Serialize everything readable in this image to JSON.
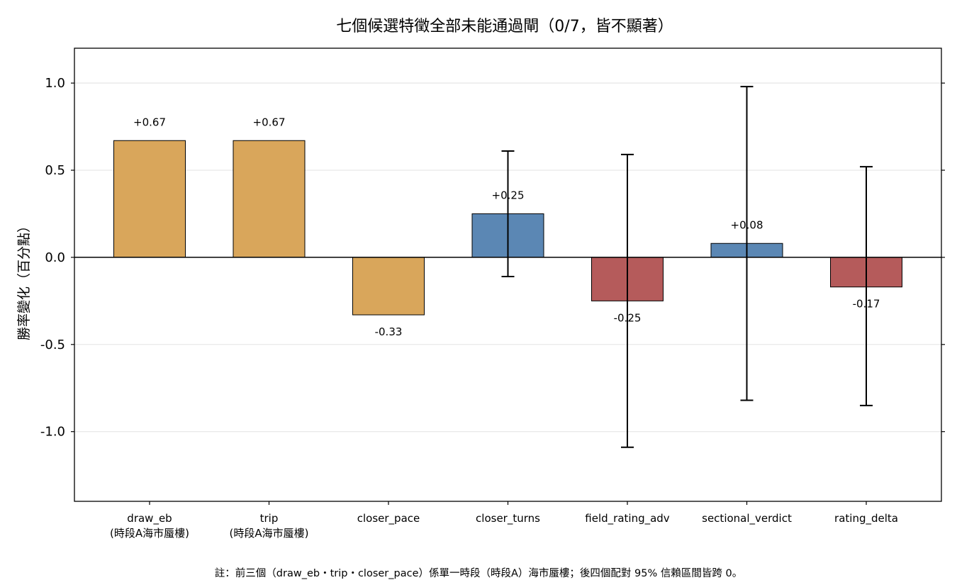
{
  "chart_data": {
    "type": "bar",
    "title": "七個候選特徵全部未能通過閘（0/7，皆不顯著）",
    "xlabel": "",
    "ylabel": "勝率變化（百分點）",
    "ylim": [
      -1.4,
      1.2
    ],
    "yticks": [
      1.0,
      0.5,
      0.0,
      -0.5,
      -1.0
    ],
    "ytick_labels": [
      "1.0",
      "0.5",
      "0.0",
      "-0.5",
      "-1.0"
    ],
    "grid": "horizontal",
    "categories": [
      [
        "draw_eb",
        "(時段A海市蜃樓)"
      ],
      [
        "trip",
        "(時段A海市蜃樓)"
      ],
      [
        "closer_pace"
      ],
      [
        "closer_turns"
      ],
      [
        "field_rating_adv"
      ],
      [
        "sectional_verdict"
      ],
      [
        "rating_delta"
      ]
    ],
    "values": [
      0.67,
      0.67,
      -0.33,
      0.25,
      -0.25,
      0.08,
      -0.17
    ],
    "value_labels": [
      "+0.67",
      "+0.67",
      "-0.33",
      "+0.25",
      "-0.25",
      "+0.08",
      "-0.17"
    ],
    "error_bars": [
      null,
      null,
      null,
      [
        -0.11,
        0.61
      ],
      [
        -1.09,
        0.59
      ],
      [
        -0.82,
        0.98
      ],
      [
        -0.85,
        0.52
      ]
    ],
    "colors": [
      "#d9a65b",
      "#d9a65b",
      "#d9a65b",
      "#5b87b4",
      "#b55b5b",
      "#5b87b4",
      "#b55b5b"
    ],
    "footnote": "註：前三個（draw_eb・trip・closer_pace）係單一時段（時段A）海市蜃樓；後四個配對 95% 信賴區間皆跨 0。"
  }
}
